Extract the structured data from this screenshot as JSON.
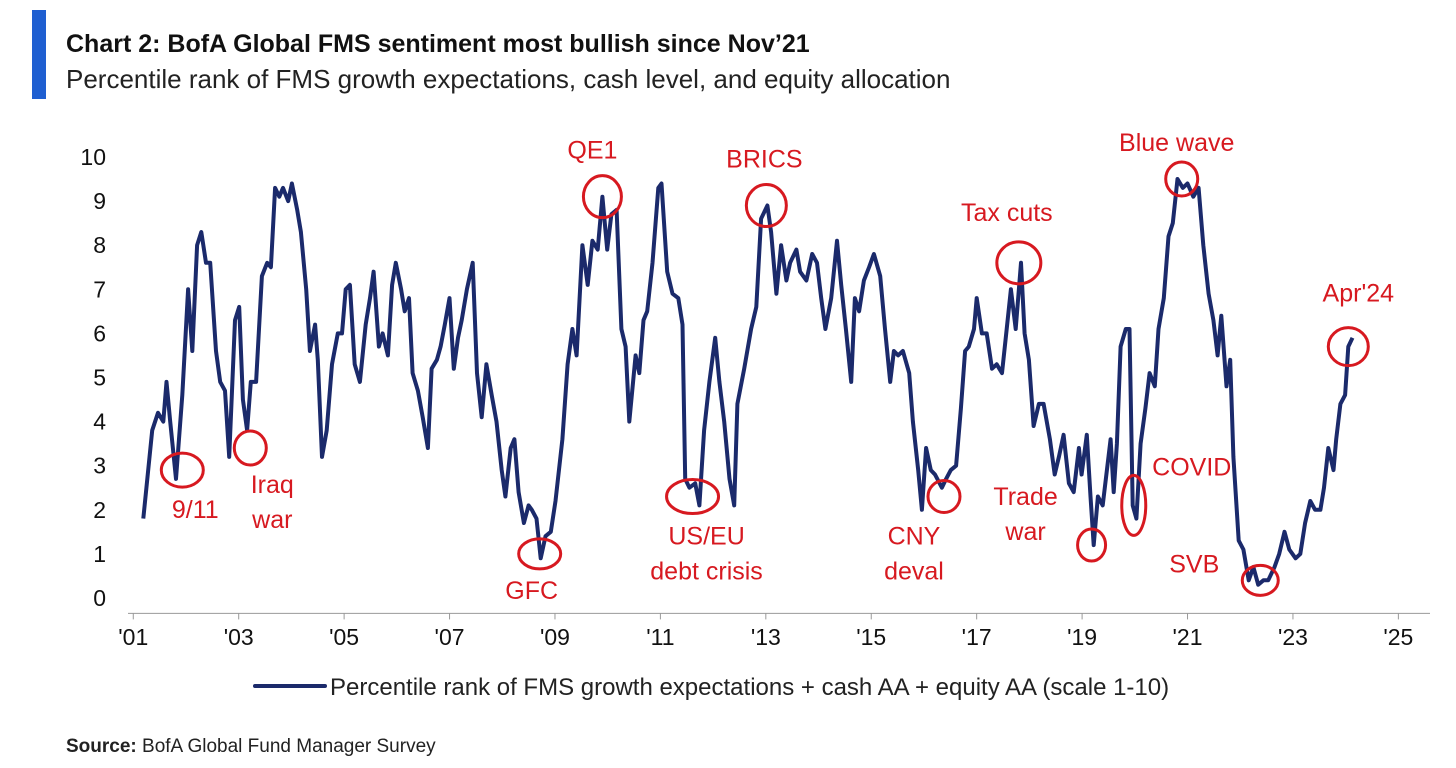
{
  "chart_data": {
    "type": "line",
    "title": "Chart 2: BofA Global FMS sentiment most bullish since Nov’21",
    "subtitle": "Percentile rank of FMS growth expectations, cash level, and equity allocation",
    "source": {
      "label": "Source:",
      "text": "BofA Global Fund Manager Survey"
    },
    "xlim": [
      2000.9,
      2025.6
    ],
    "ylim": [
      -0.35,
      10
    ],
    "yticks": [
      0,
      1,
      2,
      3,
      4,
      5,
      6,
      7,
      8,
      9,
      10
    ],
    "xticks": [
      {
        "value": 2001,
        "label": "'01"
      },
      {
        "value": 2003,
        "label": "'03"
      },
      {
        "value": 2005,
        "label": "'05"
      },
      {
        "value": 2007,
        "label": "'07"
      },
      {
        "value": 2009,
        "label": "'09"
      },
      {
        "value": 2011,
        "label": "'11"
      },
      {
        "value": 2013,
        "label": "'13"
      },
      {
        "value": 2015,
        "label": "'15"
      },
      {
        "value": 2017,
        "label": "'17"
      },
      {
        "value": 2019,
        "label": "'19"
      },
      {
        "value": 2021,
        "label": "'21"
      },
      {
        "value": 2023,
        "label": "'23"
      },
      {
        "value": 2025,
        "label": "'25"
      }
    ],
    "grid": false,
    "x": [
      2001.19,
      2001.36,
      2001.47,
      2001.57,
      2001.63,
      2001.7,
      2001.81,
      2001.93,
      2002.04,
      2002.12,
      2002.21,
      2002.29,
      2002.38,
      2002.46,
      2002.57,
      2002.65,
      2002.74,
      2002.82,
      2002.93,
      2003.01,
      2003.08,
      2003.16,
      2003.23,
      2003.33,
      2003.44,
      2003.54,
      2003.61,
      2003.69,
      2003.77,
      2003.84,
      2003.94,
      2004.01,
      2004.11,
      2004.18,
      2004.28,
      2004.35,
      2004.45,
      2004.5,
      2004.58,
      2004.67,
      2004.77,
      2004.88,
      2004.96,
      2005.03,
      2005.11,
      2005.2,
      2005.3,
      2005.41,
      2005.49,
      2005.56,
      2005.66,
      2005.73,
      2005.83,
      2005.91,
      2005.98,
      2006.08,
      2006.15,
      2006.23,
      2006.3,
      2006.4,
      2006.49,
      2006.59,
      2006.66,
      2006.76,
      2006.83,
      2006.91,
      2007.0,
      2007.08,
      2007.16,
      2007.23,
      2007.33,
      2007.44,
      2007.52,
      2007.61,
      2007.7,
      2007.8,
      2007.89,
      2007.99,
      2008.06,
      2008.16,
      2008.23,
      2008.31,
      2008.41,
      2008.5,
      2008.56,
      2008.65,
      2008.73,
      2008.82,
      2008.92,
      2009.01,
      2009.14,
      2009.24,
      2009.33,
      2009.41,
      2009.52,
      2009.62,
      2009.71,
      2009.81,
      2009.9,
      2009.99,
      2010.07,
      2010.17,
      2010.26,
      2010.34,
      2010.41,
      2010.53,
      2010.6,
      2010.68,
      2010.75,
      2010.85,
      2010.96,
      2011.02,
      2011.13,
      2011.23,
      2011.34,
      2011.42,
      2011.47,
      2011.55,
      2011.66,
      2011.74,
      2011.83,
      2011.93,
      2012.04,
      2012.12,
      2012.21,
      2012.31,
      2012.4,
      2012.46,
      2012.59,
      2012.72,
      2012.82,
      2012.91,
      2013.03,
      2013.1,
      2013.2,
      2013.29,
      2013.39,
      2013.46,
      2013.58,
      2013.65,
      2013.77,
      2013.88,
      2013.97,
      2014.05,
      2014.13,
      2014.24,
      2014.35,
      2014.43,
      2014.52,
      2014.62,
      2014.69,
      2014.77,
      2014.86,
      2014.96,
      2015.05,
      2015.17,
      2015.26,
      2015.36,
      2015.43,
      2015.51,
      2015.6,
      2015.72,
      2015.79,
      2015.89,
      2015.96,
      2016.04,
      2016.13,
      2016.21,
      2016.34,
      2016.42,
      2016.51,
      2016.61,
      2016.7,
      2016.78,
      2016.85,
      2016.95,
      2017.0,
      2017.1,
      2017.19,
      2017.29,
      2017.38,
      2017.48,
      2017.57,
      2017.65,
      2017.74,
      2017.84,
      2017.91,
      2017.99,
      2018.08,
      2018.18,
      2018.27,
      2018.39,
      2018.48,
      2018.56,
      2018.65,
      2018.75,
      2018.84,
      2018.94,
      2018.99,
      2019.09,
      2019.16,
      2019.22,
      2019.3,
      2019.39,
      2019.47,
      2019.54,
      2019.6,
      2019.66,
      2019.73,
      2019.83,
      2019.9,
      2019.96,
      2020.03,
      2020.11,
      2020.2,
      2020.28,
      2020.38,
      2020.45,
      2020.55,
      2020.64,
      2020.72,
      2020.81,
      2020.91,
      2021.0,
      2021.11,
      2021.21,
      2021.3,
      2021.4,
      2021.49,
      2021.57,
      2021.64,
      2021.74,
      2021.81,
      2021.87,
      2021.97,
      2022.06,
      2022.16,
      2022.25,
      2022.34,
      2022.44,
      2022.53,
      2022.65,
      2022.74,
      2022.84,
      2022.93,
      2023.05,
      2023.14,
      2023.23,
      2023.33,
      2023.42,
      2023.52,
      2023.59,
      2023.67,
      2023.77,
      2023.82,
      2023.9,
      2023.99,
      2024.05,
      2024.13
    ],
    "series": [
      {
        "name": "Percentile rank of FMS growth expectations + cash AA + equity AA (scale 1-10)",
        "color": "#1b2a6b",
        "values": [
          1.8,
          3.8,
          4.2,
          4.0,
          4.9,
          4.0,
          2.7,
          4.6,
          7.0,
          5.6,
          8.0,
          8.3,
          7.6,
          7.6,
          5.6,
          4.9,
          4.7,
          3.2,
          6.3,
          6.6,
          4.5,
          3.8,
          4.9,
          4.9,
          7.3,
          7.6,
          7.5,
          9.3,
          9.1,
          9.3,
          9.0,
          9.4,
          8.8,
          8.3,
          7.0,
          5.6,
          6.2,
          5.4,
          3.2,
          3.8,
          5.3,
          6.0,
          6.0,
          7.0,
          7.1,
          5.3,
          4.9,
          6.2,
          6.8,
          7.4,
          5.7,
          6.0,
          5.5,
          7.1,
          7.6,
          7.0,
          6.5,
          6.8,
          5.1,
          4.7,
          4.1,
          3.4,
          5.2,
          5.4,
          5.7,
          6.2,
          6.8,
          5.2,
          5.9,
          6.3,
          7.0,
          7.6,
          5.1,
          4.1,
          5.3,
          4.6,
          4.0,
          2.9,
          2.3,
          3.4,
          3.6,
          2.4,
          1.7,
          2.1,
          2.0,
          1.8,
          0.9,
          1.4,
          1.5,
          2.2,
          3.6,
          5.3,
          6.1,
          5.5,
          8.0,
          7.1,
          8.1,
          7.9,
          9.1,
          7.9,
          8.7,
          8.8,
          6.1,
          5.7,
          4.0,
          5.5,
          5.1,
          6.3,
          6.5,
          7.6,
          9.3,
          9.4,
          7.4,
          6.9,
          6.8,
          6.2,
          2.7,
          2.5,
          2.6,
          2.1,
          3.8,
          4.9,
          5.9,
          4.9,
          4.0,
          2.7,
          2.1,
          4.4,
          5.2,
          6.1,
          6.6,
          8.6,
          8.9,
          8.3,
          6.9,
          8.0,
          7.2,
          7.6,
          7.9,
          7.4,
          7.2,
          7.8,
          7.6,
          6.8,
          6.1,
          6.8,
          8.1,
          7.1,
          6.1,
          4.9,
          6.8,
          6.5,
          7.2,
          7.5,
          7.8,
          7.3,
          6.1,
          4.9,
          5.6,
          5.5,
          5.6,
          5.1,
          4.0,
          2.9,
          2.0,
          3.4,
          2.9,
          2.8,
          2.5,
          2.7,
          2.9,
          3.0,
          4.3,
          5.6,
          5.7,
          6.1,
          6.8,
          6.0,
          6.0,
          5.2,
          5.3,
          5.1,
          6.1,
          7.0,
          6.1,
          7.6,
          6.0,
          5.4,
          3.9,
          4.4,
          4.4,
          3.6,
          2.8,
          3.2,
          3.7,
          2.6,
          2.4,
          3.4,
          2.8,
          3.7,
          2.3,
          1.2,
          2.3,
          2.1,
          2.9,
          3.6,
          2.4,
          3.5,
          5.7,
          6.1,
          6.1,
          2.1,
          1.8,
          3.5,
          4.3,
          5.1,
          4.8,
          6.1,
          6.8,
          8.2,
          8.5,
          9.5,
          9.3,
          9.4,
          9.1,
          9.3,
          8.0,
          6.9,
          6.3,
          5.5,
          6.4,
          4.8,
          5.4,
          3.2,
          1.3,
          1.1,
          0.4,
          0.7,
          0.3,
          0.4,
          0.4,
          0.7,
          1.0,
          1.5,
          1.1,
          0.9,
          1.0,
          1.7,
          2.2,
          2.0,
          2.0,
          2.5,
          3.4,
          2.9,
          3.6,
          4.4,
          4.6,
          5.7,
          5.9
        ]
      }
    ],
    "annotation_color": "#d71920",
    "annotations": [
      {
        "lines": [
          "9/11"
        ],
        "x": 2001.93,
        "y": 2.9
      },
      {
        "lines": [
          "Iraq",
          "war"
        ],
        "x": 2003.22,
        "y": 3.4
      },
      {
        "lines": [
          "GFC"
        ],
        "x": 2008.71,
        "y": 1.0
      },
      {
        "lines": [
          "QE1"
        ],
        "x": 2009.9,
        "y": 9.1
      },
      {
        "lines": [
          "US/EU",
          "debt crisis"
        ],
        "x": 2011.61,
        "y": 2.3
      },
      {
        "lines": [
          "BRICS"
        ],
        "x": 2013.01,
        "y": 8.9
      },
      {
        "lines": [
          "CNY",
          "deval"
        ],
        "x": 2016.38,
        "y": 2.3
      },
      {
        "lines": [
          "Tax cuts"
        ],
        "x": 2017.8,
        "y": 7.6
      },
      {
        "lines": [
          "Trade",
          "war"
        ],
        "x": 2019.18,
        "y": 1.2
      },
      {
        "lines": [
          "COVID"
        ],
        "x": 2019.98,
        "y": 2.1
      },
      {
        "lines": [
          "Blue wave"
        ],
        "x": 2020.89,
        "y": 9.5
      },
      {
        "lines": [
          "SVB"
        ],
        "x": 2022.38,
        "y": 0.4
      },
      {
        "lines": [
          "Apr'24"
        ],
        "x": 2024.05,
        "y": 5.7
      }
    ]
  }
}
